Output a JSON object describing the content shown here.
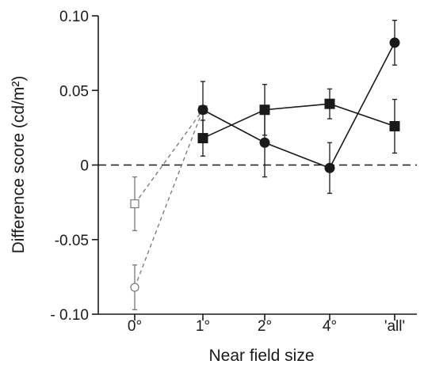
{
  "chart_data": {
    "type": "line",
    "xlabel": "Near field size",
    "ylabel": "Difference score (cd/m²)",
    "categories": [
      "0°",
      "1°",
      "2°",
      "4°",
      "'all'"
    ],
    "ylim": [
      -0.1,
      0.1
    ],
    "yticks": [
      {
        "value": 0.1,
        "label": "0.10"
      },
      {
        "value": 0.05,
        "label": "0.05"
      },
      {
        "value": 0,
        "label": "0"
      },
      {
        "value": -0.05,
        "label": "-0.05"
      },
      {
        "value": -0.1,
        "label": "- 0.10"
      }
    ],
    "reference_line": {
      "value": 0,
      "style": "dashed"
    },
    "series": [
      {
        "marker": "circle-filled",
        "line": "solid",
        "color": "#1a1a1a",
        "points": [
          {
            "category": "1°",
            "y": 0.037,
            "err": 0.019
          },
          {
            "category": "2°",
            "y": 0.015,
            "err": 0.023
          },
          {
            "category": "4°",
            "y": -0.002,
            "err": 0.017
          },
          {
            "category": "'all'",
            "y": 0.082,
            "err": 0.015
          }
        ]
      },
      {
        "marker": "square-filled",
        "line": "solid",
        "color": "#1a1a1a",
        "points": [
          {
            "category": "1°",
            "y": 0.018,
            "err": 0.012
          },
          {
            "category": "2°",
            "y": 0.037,
            "err": 0.017
          },
          {
            "category": "4°",
            "y": 0.041,
            "err": 0.01
          },
          {
            "category": "'all'",
            "y": 0.026,
            "err": 0.018
          }
        ]
      },
      {
        "marker": "circle-open",
        "line": "dashed",
        "color": "#777777",
        "points": [
          {
            "category": "0°",
            "y": -0.082,
            "err": 0.015
          },
          {
            "category": "1°",
            "y": 0.037,
            "err": 0
          }
        ]
      },
      {
        "marker": "square-open",
        "line": "dashed",
        "color": "#777777",
        "points": [
          {
            "category": "0°",
            "y": -0.026,
            "err": 0.018
          },
          {
            "category": "1°",
            "y": 0.037,
            "err": 0
          }
        ]
      }
    ]
  }
}
